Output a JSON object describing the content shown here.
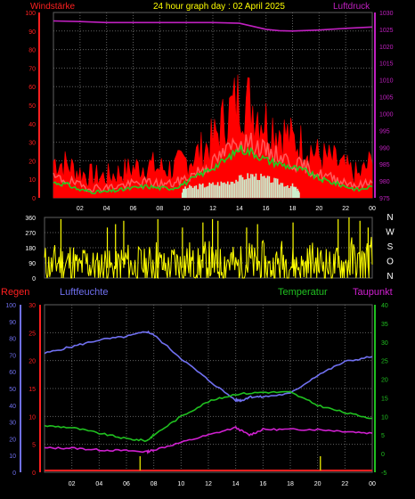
{
  "colors": {
    "background": "#000000",
    "grid": "#606060",
    "wind_peak": "#ff0000",
    "wind_avg": "#ff5a5a",
    "wind_smooth": "#22cc22",
    "sun": "#cdeecd",
    "pressure": "#c020c0",
    "direction": "#ffff00",
    "humidity": "#7070f0",
    "temperature": "#20c020",
    "dewpoint": "#d020d0",
    "rain": "#ff2020",
    "rain_bar": "#d0d000",
    "title": "#ffff00",
    "axis_left_top": "#ff2020",
    "axis_right_top": "#c020c0",
    "axis_mid": "#ffffff",
    "axis_humidity": "#7070f0",
    "axis_temp": "#20c020"
  },
  "chart_data": [
    {
      "type": "area",
      "title": "24 hour graph day : 02 April 2025",
      "left_label": "Windstärke",
      "right_label": "Luftdruck",
      "x_ticks": [
        "02",
        "04",
        "06",
        "08",
        "10",
        "12",
        "14",
        "16",
        "18",
        "20",
        "22",
        "00"
      ],
      "ylim_left": [
        0,
        100
      ],
      "left_ticks": [
        "0",
        "10",
        "20",
        "30",
        "40",
        "50",
        "60",
        "70",
        "80",
        "90",
        "100"
      ],
      "ylim_right": [
        975,
        1030
      ],
      "right_ticks": [
        "975",
        "980",
        "985",
        "990",
        "995",
        "1000",
        "1005",
        "1010",
        "1015",
        "1020",
        "1025",
        "1030"
      ],
      "grid": true,
      "wind_hours": [
        0,
        1,
        2,
        3,
        4,
        5,
        6,
        7,
        8,
        9,
        10,
        11,
        12,
        13,
        14,
        15,
        16,
        17,
        18,
        19,
        20,
        21,
        22,
        23,
        24
      ],
      "wind_peak": [
        18,
        16,
        12,
        10,
        10,
        12,
        14,
        16,
        14,
        14,
        18,
        22,
        28,
        40,
        50,
        46,
        38,
        34,
        28,
        26,
        20,
        18,
        14,
        10,
        18
      ],
      "wind_avg": [
        10,
        9,
        6,
        5,
        5,
        6,
        7,
        8,
        7,
        7,
        10,
        14,
        18,
        24,
        30,
        28,
        24,
        22,
        18,
        16,
        12,
        10,
        8,
        6,
        8
      ],
      "wind_smooth": [
        8,
        7,
        4,
        3,
        3,
        4,
        5,
        6,
        5,
        5,
        8,
        12,
        16,
        20,
        26,
        24,
        20,
        18,
        16,
        14,
        10,
        8,
        6,
        4,
        6
      ],
      "sun_hours": [
        9.7,
        10,
        11,
        12,
        13,
        14,
        15,
        16,
        17,
        18,
        18.5
      ],
      "sun_values": [
        3,
        5,
        6,
        7,
        8,
        10,
        12,
        10,
        8,
        6,
        3
      ],
      "pressure_hours": [
        0,
        2,
        4,
        6,
        8,
        10,
        12,
        14,
        16,
        17,
        18,
        20,
        22,
        24
      ],
      "pressure_values": [
        1027.5,
        1027.3,
        1027,
        1027,
        1027,
        1027,
        1027,
        1026.8,
        1025,
        1024.6,
        1024.5,
        1024.8,
        1025.3,
        1025.7
      ]
    },
    {
      "type": "line",
      "series_label": "wind direction",
      "left_ticks": [
        "0",
        "90",
        "180",
        "270",
        "360"
      ],
      "ylim": [
        0,
        360
      ],
      "right_labels": [
        "N",
        "W",
        "S",
        "O",
        "N"
      ],
      "hours": [
        0,
        0.5,
        1,
        1.5,
        2,
        2.5,
        3,
        3.5,
        4,
        4.5,
        5,
        5.5,
        6,
        6.5,
        7,
        7.5,
        8,
        8.5,
        9,
        9.5,
        10,
        10.5,
        11,
        11.5,
        12,
        12.5,
        13,
        13.5,
        14,
        14.5,
        15,
        15.5,
        16,
        16.5,
        17,
        17.5,
        18,
        18.5,
        19,
        19.5,
        20,
        20.5,
        21,
        21.5,
        22,
        22.5,
        23,
        23.5,
        24
      ],
      "values": [
        60,
        45,
        75,
        55,
        70,
        40,
        65,
        50,
        45,
        60,
        35,
        55,
        70,
        40,
        60,
        45,
        80,
        55,
        40,
        65,
        50,
        75,
        45,
        60,
        70,
        50,
        55,
        80,
        45,
        60,
        70,
        50,
        65,
        40,
        55,
        75,
        60,
        50,
        45,
        70,
        55,
        65,
        40,
        60,
        50,
        75,
        55,
        65,
        80
      ],
      "spike_hours": [
        1.2,
        4.6,
        5.2,
        5.8,
        8.3,
        10.1,
        11.6,
        12.3,
        12.7,
        14.8,
        15.6,
        18.2,
        21.5,
        22.3,
        23.1,
        23.7
      ],
      "spike_values": [
        350,
        300,
        320,
        340,
        350,
        300,
        330,
        350,
        340,
        300,
        320,
        330,
        350,
        360,
        340,
        300
      ]
    },
    {
      "type": "line",
      "legend": {
        "rain": "Regen",
        "humidity": "Luftfeuchte",
        "temperature": "Temperatur",
        "dewpoint": "Taupunkt"
      },
      "x_ticks": [
        "02",
        "04",
        "06",
        "08",
        "10",
        "12",
        "14",
        "16",
        "18",
        "20",
        "22",
        "00"
      ],
      "humidity_ticks": [
        "0",
        "10",
        "20",
        "30",
        "40",
        "50",
        "60",
        "70",
        "80",
        "90",
        "100"
      ],
      "ylim_humidity": [
        0,
        100
      ],
      "rain_ticks": [
        "0",
        "5",
        "10",
        "15",
        "20",
        "25",
        "30"
      ],
      "ylim_rain": [
        0,
        30
      ],
      "temp_ticks": [
        "-5",
        "0",
        "5",
        "10",
        "15",
        "20",
        "25",
        "30",
        "35",
        "40"
      ],
      "ylim_temp": [
        -5,
        40
      ],
      "grid": true,
      "humidity_hours": [
        0,
        2,
        4,
        6,
        7.5,
        8,
        10,
        12,
        14,
        14.5,
        15,
        16,
        18,
        20,
        22,
        24
      ],
      "humidity_values": [
        71,
        75,
        79,
        81,
        84,
        82,
        68,
        55,
        43,
        43,
        45,
        45,
        47,
        58,
        66,
        69
      ],
      "temperature_hours": [
        0,
        2,
        4,
        6,
        7.5,
        8,
        10,
        12,
        14,
        16,
        18,
        20,
        22,
        24
      ],
      "temperature_values": [
        7.5,
        7,
        5.5,
        4,
        3.5,
        5,
        10,
        14,
        16,
        16.5,
        16.5,
        13,
        11,
        9.5
      ],
      "dewpoint_hours": [
        0,
        2,
        4,
        6,
        7.5,
        8,
        10,
        12,
        14,
        15,
        16,
        18,
        20,
        22,
        24
      ],
      "dewpoint_values": [
        1.5,
        1.5,
        1,
        0.8,
        0.5,
        1,
        3,
        5,
        7,
        5,
        6.5,
        6.5,
        6.5,
        6,
        5.5
      ],
      "rain_bar_hours": [
        7,
        20.2
      ]
    }
  ]
}
